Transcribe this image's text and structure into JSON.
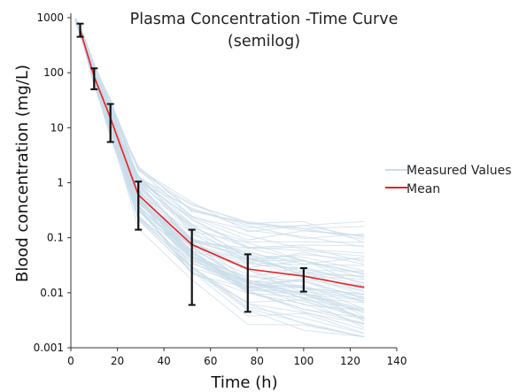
{
  "chart_data": {
    "type": "line",
    "title_line1": "Plasma Concentration -Time Curve",
    "title_line2": "(semilog)",
    "xlabel": "Time (h)",
    "ylabel": "Blood concentration (mg/L)",
    "xlim": [
      0,
      140
    ],
    "ylim": [
      0.001,
      1000
    ],
    "y_scale": "log",
    "grid": false,
    "legend_position": "right",
    "x_ticks": [
      0,
      20,
      40,
      60,
      80,
      100,
      120,
      140
    ],
    "x_tick_labels": [
      "0",
      "20",
      "40",
      "60",
      "80",
      "100",
      "120",
      "140"
    ],
    "y_ticks": [
      0.001,
      0.01,
      0.1,
      1,
      10,
      100,
      1000
    ],
    "y_tick_labels": [
      "0.001",
      "0.01",
      "0.1",
      "1",
      "10",
      "100",
      "1000"
    ],
    "series": [
      {
        "name": "Measured Values",
        "color": "#c9dcea",
        "style": "many thin individual curves",
        "x": [
          2,
          5,
          10,
          17,
          29,
          52,
          76,
          100,
          126
        ]
      },
      {
        "name": "Mean",
        "color": "#e8211f",
        "x": [
          4,
          10,
          17,
          29,
          52,
          76,
          100,
          126
        ],
        "y": [
          600,
          85,
          15,
          0.6,
          0.075,
          0.027,
          0.02,
          0.0125
        ]
      }
    ],
    "error_bars": {
      "color": "#111111",
      "x": [
        4,
        10,
        17,
        29,
        52,
        76,
        100
      ],
      "low": [
        450,
        50,
        5.5,
        0.14,
        0.006,
        0.0045,
        0.0105
      ],
      "high": [
        780,
        120,
        27,
        1.05,
        0.14,
        0.05,
        0.028
      ]
    }
  }
}
